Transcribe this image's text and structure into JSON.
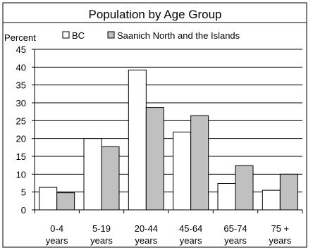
{
  "chart_data": {
    "type": "bar",
    "title": "Population by Age Group",
    "ylabel": "Percent",
    "xlabel": "",
    "ylim": [
      0,
      45
    ],
    "yticks": [
      0,
      5,
      10,
      15,
      20,
      25,
      30,
      35,
      40,
      45
    ],
    "grid": true,
    "legend_position": "top",
    "categories": [
      [
        "0-4",
        "years"
      ],
      [
        "5-19",
        "years"
      ],
      [
        "20-44",
        "years"
      ],
      [
        "45-64",
        "years"
      ],
      [
        "65-74",
        "years"
      ],
      [
        "75 +",
        "years"
      ]
    ],
    "series": [
      {
        "name": "BC",
        "color": "#ffffff",
        "values": [
          6.3,
          20.0,
          39.2,
          21.8,
          7.4,
          5.5
        ]
      },
      {
        "name": "Saanich North and the Islands",
        "color": "#c0c0c0",
        "values": [
          4.8,
          17.7,
          28.7,
          26.4,
          12.4,
          10.0
        ]
      }
    ]
  }
}
